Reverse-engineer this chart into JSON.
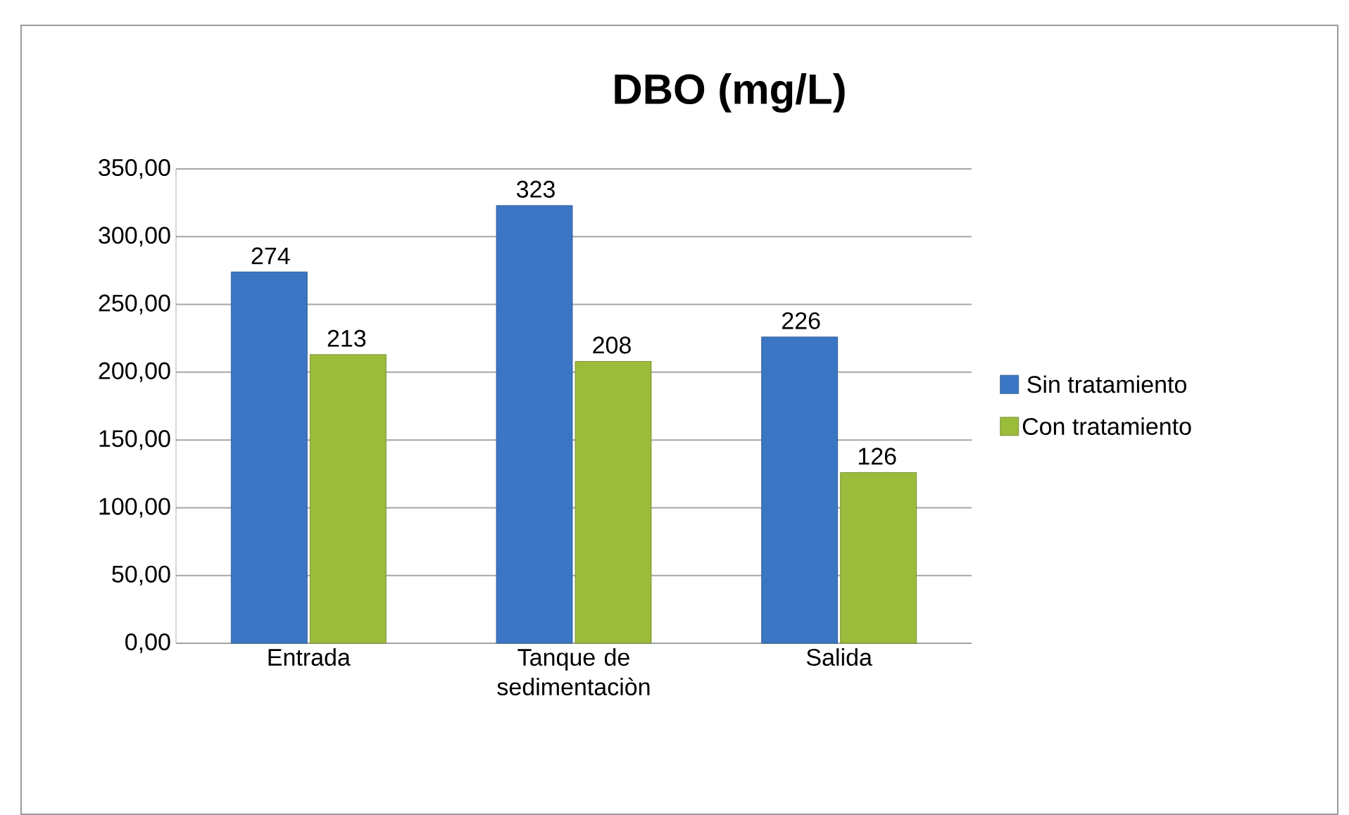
{
  "chart_data": {
    "type": "bar",
    "title": "DBO (mg/L)",
    "categories": [
      "Entrada",
      "Tanque de sedimentaciòn",
      "Salida"
    ],
    "series": [
      {
        "name": "Sin tratamiento",
        "color": "#3a76c4",
        "values": [
          274,
          323,
          226
        ]
      },
      {
        "name": "Con tratamiento",
        "color": "#9bbb3b",
        "values": [
          213,
          208,
          126
        ]
      }
    ],
    "ylim": [
      0,
      350
    ],
    "yticks": [
      {
        "value": 0,
        "label": "0,00"
      },
      {
        "value": 50,
        "label": "50,00"
      },
      {
        "value": 100,
        "label": "100,00"
      },
      {
        "value": 150,
        "label": "150,00"
      },
      {
        "value": 200,
        "label": "200,00"
      },
      {
        "value": 250,
        "label": "250,00"
      },
      {
        "value": 300,
        "label": "300,00"
      },
      {
        "value": 350,
        "label": "350,00"
      }
    ],
    "grid": "y",
    "legend": "right",
    "data_labels": true
  }
}
